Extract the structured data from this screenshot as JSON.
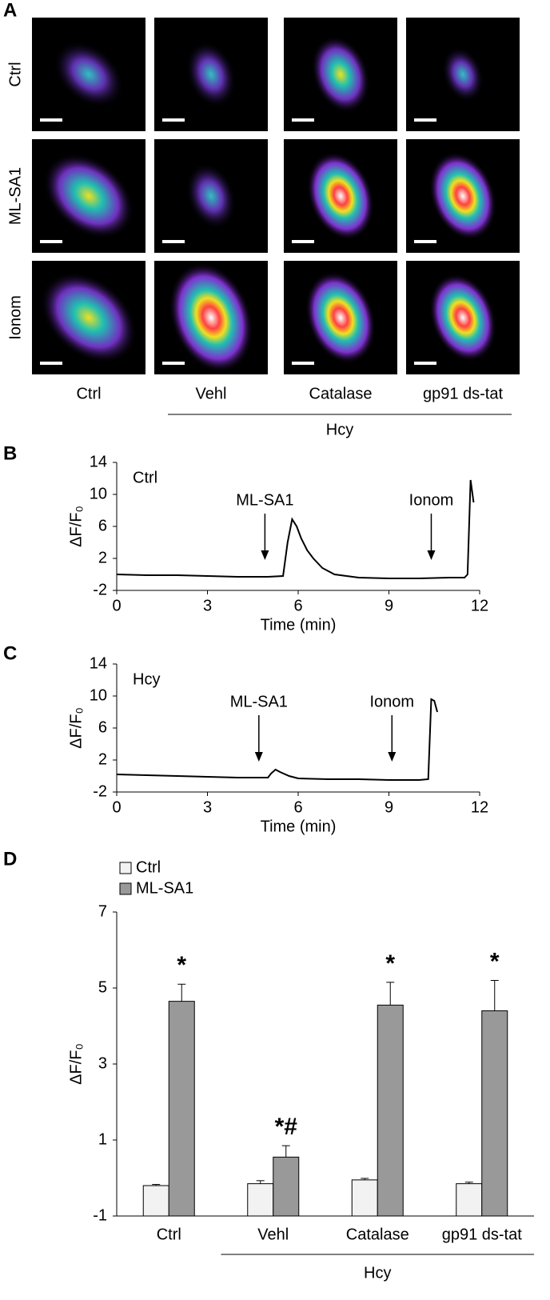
{
  "panel_labels": [
    "A",
    "B",
    "C",
    "D"
  ],
  "images": {
    "row_labels": [
      "Ctrl",
      "ML-SA1",
      "Ionom"
    ],
    "column_labels": [
      "Ctrl",
      "Vehl",
      "Catalase",
      "gp91 ds-tat"
    ],
    "group_label": "Hcy"
  },
  "chart_data": [
    {
      "type": "line",
      "label": "Ctrl",
      "x_label": "Time (min)",
      "y_label": "ΔF/F₀",
      "color": "#000000",
      "x": [
        0,
        1,
        2,
        3,
        4,
        5,
        5.5,
        5.65,
        5.8,
        5.95,
        6.1,
        6.3,
        6.5,
        6.8,
        7.2,
        8,
        9,
        10,
        11,
        11.5,
        11.6,
        11.7,
        11.8
      ],
      "values": [
        0,
        -0.1,
        -0.1,
        -0.2,
        -0.3,
        -0.3,
        -0.2,
        4,
        6.9,
        6,
        4.5,
        3,
        2,
        0.8,
        0,
        -0.4,
        -0.5,
        -0.5,
        -0.4,
        -0.4,
        0,
        11.8,
        9
      ],
      "annotations": [
        {
          "text": "ML-SA1",
          "x": 4.9
        },
        {
          "text": "Ionom",
          "x": 10.4
        }
      ],
      "xlim": [
        0,
        12
      ],
      "xticks": [
        0,
        3,
        6,
        9,
        12
      ],
      "ylim": [
        -2,
        14
      ],
      "yticks": [
        -2,
        2,
        6,
        10,
        14
      ]
    },
    {
      "type": "line",
      "label": "Hcy",
      "x_label": "Time (min)",
      "y_label": "ΔF/F₀",
      "color": "#000000",
      "x": [
        0,
        1,
        2,
        3,
        4,
        5,
        5.1,
        5.25,
        5.4,
        5.7,
        6,
        7,
        8,
        9,
        10,
        10.3,
        10.4,
        10.5,
        10.6
      ],
      "values": [
        0.2,
        0.1,
        0,
        -0.1,
        -0.2,
        -0.2,
        0.3,
        0.8,
        0.5,
        0,
        -0.3,
        -0.4,
        -0.4,
        -0.5,
        -0.5,
        -0.4,
        9.6,
        9.4,
        8
      ],
      "annotations": [
        {
          "text": "ML-SA1",
          "x": 4.7
        },
        {
          "text": "Ionom",
          "x": 9.1
        }
      ],
      "xlim": [
        0,
        12
      ],
      "xticks": [
        0,
        3,
        6,
        9,
        12
      ],
      "ylim": [
        -2,
        14
      ],
      "yticks": [
        -2,
        2,
        6,
        10,
        14
      ]
    },
    {
      "type": "bar",
      "y_label": "ΔF/F₀",
      "categories": [
        "Ctrl",
        "Vehl",
        "Catalase",
        "gp91 ds-tat"
      ],
      "group_label": "Hcy",
      "series": [
        {
          "name": "Ctrl",
          "color": "#f2f2f2",
          "values": [
            -0.2,
            -0.15,
            -0.05,
            -0.15
          ],
          "errors": [
            0.03,
            0.08,
            0.04,
            0.04
          ]
        },
        {
          "name": "ML-SA1",
          "color": "#999999",
          "values": [
            4.65,
            0.55,
            4.55,
            4.4
          ],
          "errors": [
            0.45,
            0.3,
            0.6,
            0.8
          ]
        }
      ],
      "significance": [
        "*",
        "*#",
        "*",
        "*"
      ],
      "ylim": [
        -1,
        7
      ],
      "yticks": [
        -1,
        1,
        3,
        5,
        7
      ]
    }
  ]
}
